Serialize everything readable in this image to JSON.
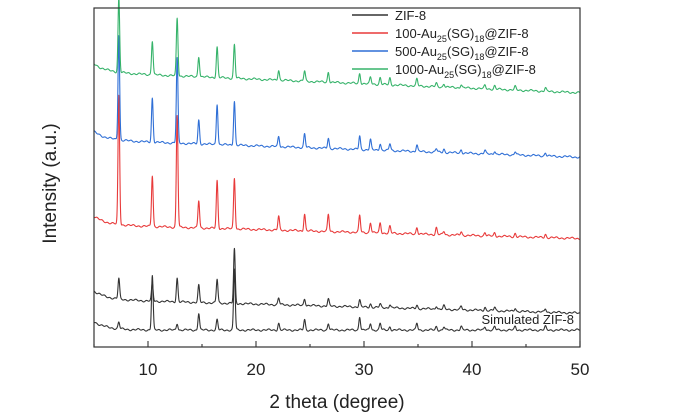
{
  "chart_data": {
    "type": "line",
    "xlabel": "2 theta (degree)",
    "ylabel": "Intensity (a.u.)",
    "xlim": [
      5,
      50
    ],
    "ylim": [
      0,
      100
    ],
    "xticks": [
      10,
      20,
      30,
      40,
      50
    ],
    "legend_position": "top-right",
    "peak_positions": [
      7.3,
      10.4,
      12.7,
      14.7,
      16.4,
      18.0,
      22.1,
      24.5,
      26.7,
      29.6,
      30.6,
      31.5,
      32.4,
      34.9,
      36.7,
      37.4,
      39.0,
      41.2,
      42.1,
      44.0,
      46.8
    ],
    "series": [
      {
        "name": "Simulated ZIF-8",
        "legend_label": "",
        "annotation": "Simulated ZIF-8",
        "color": "#333333",
        "baseline": 5,
        "baseline_slope": 0,
        "intensities": [
          2,
          16,
          2,
          5,
          3,
          18,
          2,
          3,
          2,
          4,
          2,
          2,
          1,
          2,
          1,
          1,
          1,
          1,
          1,
          1,
          1
        ]
      },
      {
        "name": "ZIF-8",
        "legend_label": "ZIF-8",
        "color": "#333333",
        "baseline": 14,
        "baseline_slope": -4,
        "intensities": [
          6,
          5,
          7,
          5,
          7,
          16,
          2,
          2,
          2,
          2,
          1,
          1,
          1,
          1,
          1,
          1,
          1,
          1,
          1,
          1,
          1
        ]
      },
      {
        "name": "100-Au25(SG)18@ZIF-8",
        "legend_label": {
          "pre": "100-Au",
          "sub1": "25",
          "mid": "(SG)",
          "sub2": "18",
          "post": "@ZIF-8"
        },
        "color": "#e83a3a",
        "baseline": 36,
        "baseline_slope": -4,
        "intensities": [
          38,
          15,
          33,
          8,
          14,
          15,
          4,
          5,
          5,
          5,
          3,
          3,
          2,
          2,
          2,
          1,
          1,
          1,
          1,
          1,
          1
        ]
      },
      {
        "name": "500-Au25(SG)18@ZIF-8",
        "legend_label": {
          "pre": "500-Au",
          "sub1": "25",
          "mid": "(SG)",
          "sub2": "18",
          "post": "@ZIF-8"
        },
        "color": "#2f6fd6",
        "baseline": 61,
        "baseline_slope": -5,
        "intensities": [
          31,
          13,
          25,
          7,
          12,
          13,
          3,
          4,
          3,
          4,
          3,
          2,
          2,
          2,
          1,
          1,
          1,
          1,
          1,
          1,
          1
        ]
      },
      {
        "name": "1000-Au25(SG)18@ZIF-8",
        "legend_label": {
          "pre": "1000-Au",
          "sub1": "25",
          "mid": "(SG)",
          "sub2": "18",
          "post": "@ZIF-8"
        },
        "color": "#36b36a",
        "baseline": 81,
        "baseline_slope": -6,
        "intensities": [
          22,
          10,
          17,
          6,
          9,
          10,
          3,
          3,
          3,
          3,
          2,
          2,
          2,
          2,
          1,
          1,
          1,
          1,
          1,
          1,
          1
        ]
      }
    ]
  }
}
